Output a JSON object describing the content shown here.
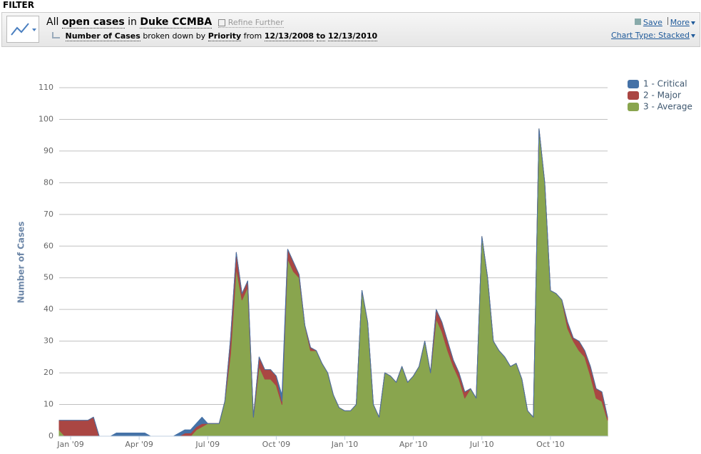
{
  "filter_label": "FILTER",
  "toolbar": {
    "line1": [
      "All",
      "open cases",
      "in",
      "Duke CCMBA"
    ],
    "refine": "Refine Further",
    "line2": [
      "Number of Cases",
      "broken down by",
      "Priority",
      "from",
      "12/13/2008",
      "to",
      "12/13/2010"
    ],
    "save": "Save",
    "more": "More",
    "chart_type": "Chart Type: Stacked"
  },
  "chart_data": {
    "type": "stacked-area",
    "y_label": "Number of Cases",
    "categories": [
      null,
      null,
      "Jan '09",
      null,
      null,
      null,
      null,
      null,
      null,
      null,
      null,
      null,
      null,
      null,
      "Apr '09",
      null,
      null,
      null,
      null,
      null,
      null,
      null,
      null,
      null,
      null,
      null,
      "Jul '09",
      null,
      null,
      null,
      null,
      null,
      null,
      null,
      null,
      null,
      null,
      null,
      "Oct '09",
      null,
      null,
      null,
      null,
      null,
      null,
      null,
      null,
      null,
      null,
      null,
      "Jan '10",
      null,
      null,
      null,
      null,
      null,
      null,
      null,
      null,
      null,
      null,
      null,
      "Apr '10",
      null,
      null,
      null,
      null,
      null,
      null,
      null,
      null,
      null,
      null,
      null,
      "Jul '10",
      null,
      null,
      null,
      null,
      null,
      null,
      null,
      null,
      null,
      null,
      null,
      "Oct '10",
      null,
      null,
      null,
      null,
      null,
      null,
      null,
      null,
      null,
      null
    ],
    "series": [
      {
        "name": "1 - Critical",
        "color": "#4572a7",
        "values": [
          0,
          0,
          0,
          0,
          0,
          0,
          0,
          0,
          0,
          0,
          1,
          1,
          1,
          1,
          1,
          1,
          0,
          0,
          0,
          0,
          0,
          1,
          1,
          1,
          1,
          2,
          0,
          0,
          0,
          0,
          0,
          0,
          0,
          0,
          0,
          0,
          0,
          0,
          0,
          2,
          0,
          0,
          0,
          0,
          0,
          0,
          0,
          0,
          0,
          0,
          0,
          0,
          0,
          0,
          0,
          0,
          0,
          0,
          0,
          0,
          0,
          0,
          0,
          0,
          0,
          0,
          0,
          0,
          0,
          0,
          0,
          0,
          0,
          0,
          0,
          0,
          0,
          0,
          0,
          0,
          0,
          0,
          0,
          0,
          0,
          0,
          0,
          0,
          0,
          0,
          0,
          0,
          0,
          0,
          0,
          0,
          0
        ]
      },
      {
        "name": "2 - Major",
        "color": "#aa4643",
        "values": [
          3,
          5,
          5,
          5,
          5,
          5,
          6,
          0,
          0,
          0,
          0,
          0,
          0,
          0,
          0,
          0,
          0,
          0,
          0,
          0,
          0,
          0,
          1,
          1,
          1,
          1,
          0,
          0,
          0,
          0,
          5,
          5,
          2,
          2,
          0,
          3,
          3,
          3,
          3,
          1,
          3,
          3,
          1,
          0,
          1,
          0,
          0,
          0,
          0,
          0,
          0,
          0,
          0,
          0,
          0,
          0,
          0,
          0,
          0,
          0,
          0,
          0,
          0,
          0,
          0,
          0,
          3,
          3,
          3,
          2,
          2,
          2,
          0,
          0,
          0,
          0,
          0,
          0,
          0,
          0,
          0,
          0,
          0,
          0,
          0,
          0,
          0,
          0,
          0,
          2,
          1,
          3,
          2,
          3,
          3,
          3,
          1
        ]
      },
      {
        "name": "3 - Average",
        "color": "#89a54e",
        "values": [
          2,
          0,
          0,
          0,
          0,
          0,
          0,
          0,
          0,
          0,
          0,
          0,
          0,
          0,
          0,
          0,
          0,
          0,
          0,
          0,
          0,
          0,
          0,
          0,
          2,
          3,
          4,
          4,
          4,
          11,
          26,
          53,
          43,
          47,
          6,
          22,
          18,
          18,
          16,
          10,
          56,
          52,
          50,
          35,
          27,
          27,
          23,
          20,
          13,
          9,
          8,
          8,
          10,
          46,
          36,
          10,
          6,
          20,
          19,
          17,
          22,
          17,
          19,
          22,
          30,
          20,
          37,
          33,
          27,
          22,
          18,
          12,
          15,
          12,
          63,
          50,
          30,
          27,
          25,
          22,
          23,
          18,
          8,
          6,
          97,
          80,
          46,
          45,
          43,
          34,
          30,
          27,
          25,
          19,
          12,
          11,
          5
        ]
      }
    ],
    "ylim": [
      0,
      110
    ],
    "yticks": [
      0,
      10,
      20,
      30,
      40,
      50,
      60,
      70,
      80,
      90,
      100,
      110
    ],
    "grid": true,
    "legend": "top-right"
  }
}
